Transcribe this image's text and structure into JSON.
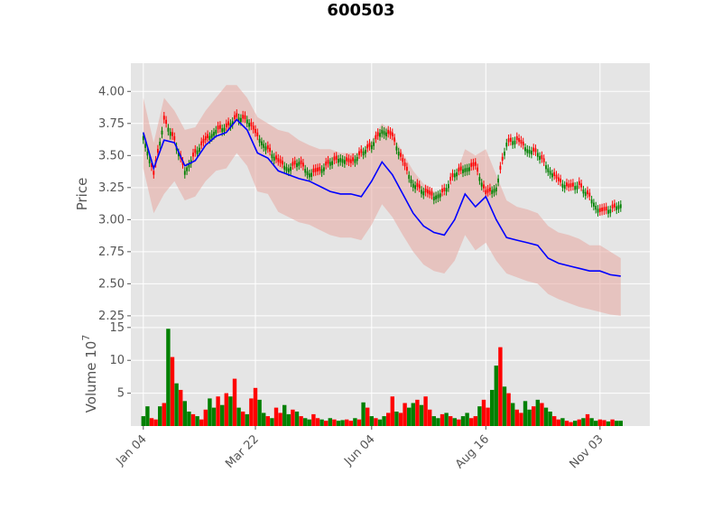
{
  "chart_data": {
    "type": "candlestick",
    "title": "600503",
    "price_panel": {
      "ylabel": "Price",
      "ylim": [
        2.2,
        4.22
      ],
      "yticks": [
        2.25,
        2.5,
        2.75,
        3.0,
        3.25,
        3.5,
        3.75,
        4.0
      ],
      "ytick_labels": [
        "2.25",
        "2.50",
        "2.75",
        "3.00",
        "3.25",
        "3.50",
        "3.75",
        "4.00"
      ],
      "series": [
        {
          "name": "close",
          "color": "#6b8e23",
          "x": [
            0,
            5,
            10,
            15,
            20,
            25,
            30,
            35,
            40,
            45,
            50,
            55,
            60,
            65,
            70,
            75,
            80,
            85,
            90,
            95,
            100,
            105,
            110,
            115,
            120,
            125,
            130,
            135,
            140,
            145,
            150,
            155,
            160,
            165,
            170,
            175,
            180,
            185,
            190,
            195,
            200,
            205,
            210,
            215,
            220,
            225,
            230
          ],
          "y": [
            3.65,
            3.35,
            3.78,
            3.62,
            3.38,
            3.52,
            3.62,
            3.7,
            3.72,
            3.8,
            3.78,
            3.65,
            3.55,
            3.45,
            3.4,
            3.45,
            3.36,
            3.38,
            3.45,
            3.48,
            3.44,
            3.52,
            3.58,
            3.7,
            3.65,
            3.45,
            3.28,
            3.22,
            3.18,
            3.22,
            3.36,
            3.4,
            3.42,
            3.2,
            3.25,
            3.6,
            3.62,
            3.55,
            3.52,
            3.4,
            3.3,
            3.25,
            3.27,
            3.18,
            3.06,
            3.08,
            3.12
          ]
        },
        {
          "name": "moving average",
          "color": "#0000ff",
          "x": [
            0,
            5,
            10,
            15,
            20,
            25,
            30,
            35,
            40,
            45,
            50,
            55,
            60,
            65,
            70,
            75,
            80,
            85,
            90,
            95,
            100,
            105,
            110,
            115,
            120,
            125,
            130,
            135,
            140,
            145,
            150,
            155,
            160,
            165,
            170,
            175,
            180,
            185,
            190,
            195,
            200,
            205,
            210,
            215,
            220,
            225,
            230
          ],
          "y": [
            3.68,
            3.4,
            3.62,
            3.6,
            3.42,
            3.46,
            3.58,
            3.65,
            3.68,
            3.78,
            3.7,
            3.52,
            3.48,
            3.38,
            3.35,
            3.32,
            3.3,
            3.26,
            3.22,
            3.2,
            3.2,
            3.18,
            3.3,
            3.45,
            3.35,
            3.2,
            3.05,
            2.95,
            2.9,
            2.88,
            3.0,
            3.2,
            3.1,
            3.18,
            3.0,
            2.86,
            2.84,
            2.82,
            2.8,
            2.7,
            2.66,
            2.64,
            2.62,
            2.6,
            2.6,
            2.57,
            2.56
          ]
        }
      ],
      "band": {
        "name": "envelope",
        "color": "#e8a8a0",
        "x": [
          0,
          5,
          10,
          15,
          20,
          25,
          30,
          35,
          40,
          45,
          50,
          55,
          60,
          65,
          70,
          75,
          80,
          85,
          90,
          95,
          100,
          105,
          110,
          115,
          120,
          125,
          130,
          135,
          140,
          145,
          150,
          155,
          160,
          165,
          170,
          175,
          180,
          185,
          190,
          195,
          200,
          205,
          210,
          215,
          220,
          225,
          230
        ],
        "upper": [
          3.95,
          3.6,
          3.95,
          3.85,
          3.7,
          3.72,
          3.85,
          3.95,
          4.05,
          4.05,
          3.95,
          3.8,
          3.75,
          3.7,
          3.68,
          3.62,
          3.58,
          3.55,
          3.55,
          3.52,
          3.52,
          3.52,
          3.62,
          3.75,
          3.68,
          3.52,
          3.38,
          3.28,
          3.22,
          3.2,
          3.32,
          3.55,
          3.5,
          3.55,
          3.35,
          3.15,
          3.1,
          3.08,
          3.05,
          2.95,
          2.9,
          2.88,
          2.85,
          2.8,
          2.8,
          2.75,
          2.7
        ],
        "lower": [
          3.4,
          3.05,
          3.2,
          3.3,
          3.15,
          3.18,
          3.3,
          3.38,
          3.4,
          3.52,
          3.42,
          3.22,
          3.2,
          3.06,
          3.02,
          2.98,
          2.96,
          2.92,
          2.88,
          2.86,
          2.86,
          2.84,
          2.96,
          3.12,
          3.02,
          2.88,
          2.75,
          2.65,
          2.6,
          2.58,
          2.68,
          2.88,
          2.76,
          2.82,
          2.68,
          2.58,
          2.55,
          2.52,
          2.5,
          2.42,
          2.38,
          2.35,
          2.32,
          2.3,
          2.28,
          2.26,
          2.25
        ]
      }
    },
    "volume_panel": {
      "ylabel": "Volume  10",
      "ylabel_exponent": "7",
      "ylim": [
        0,
        15.8
      ],
      "yticks": [
        5,
        10,
        15
      ],
      "ytick_labels": [
        "5",
        "10",
        "15"
      ],
      "x": [
        0,
        2,
        4,
        6,
        8,
        10,
        12,
        14,
        16,
        18,
        20,
        22,
        24,
        26,
        28,
        30,
        32,
        34,
        36,
        38,
        40,
        42,
        44,
        46,
        48,
        50,
        52,
        54,
        56,
        58,
        60,
        62,
        64,
        66,
        68,
        70,
        72,
        74,
        76,
        78,
        80,
        82,
        84,
        86,
        88,
        90,
        92,
        94,
        96,
        98,
        100,
        102,
        104,
        106,
        108,
        110,
        112,
        114,
        116,
        118,
        120,
        122,
        124,
        126,
        128,
        130,
        132,
        134,
        136,
        138,
        140,
        142,
        144,
        146,
        148,
        150,
        152,
        154,
        156,
        158,
        160,
        162,
        164,
        166,
        168,
        170,
        172,
        174,
        176,
        178,
        180,
        182,
        184,
        186,
        188,
        190,
        192,
        194,
        196,
        198,
        200,
        202,
        204,
        206,
        208,
        210,
        212,
        214,
        216,
        218,
        220,
        222,
        224,
        226,
        228,
        230
      ],
      "values": [
        1.5,
        3.0,
        1.2,
        1.0,
        3.0,
        3.5,
        14.8,
        10.5,
        6.5,
        5.5,
        3.8,
        2.2,
        1.8,
        1.5,
        1.0,
        2.5,
        4.2,
        2.8,
        4.5,
        3.2,
        5.0,
        4.5,
        7.2,
        2.8,
        2.2,
        1.8,
        4.2,
        5.8,
        4.0,
        2.0,
        1.5,
        1.2,
        2.8,
        2.0,
        3.2,
        1.8,
        2.5,
        2.2,
        1.5,
        1.2,
        1.0,
        1.8,
        1.2,
        1.0,
        0.8,
        1.2,
        1.0,
        0.8,
        0.9,
        1.0,
        0.8,
        1.2,
        1.0,
        3.6,
        2.8,
        1.5,
        1.2,
        1.0,
        1.5,
        2.0,
        4.5,
        2.2,
        2.0,
        3.5,
        2.8,
        3.5,
        4.0,
        3.2,
        4.5,
        2.5,
        1.5,
        1.2,
        1.8,
        2.0,
        1.5,
        1.2,
        1.0,
        1.5,
        2.0,
        1.2,
        1.5,
        3.0,
        4.0,
        2.8,
        5.5,
        9.2,
        12.0,
        6.0,
        5.0,
        3.5,
        2.5,
        2.0,
        3.8,
        2.5,
        3.0,
        4.0,
        3.5,
        2.8,
        2.2,
        1.5,
        1.0,
        1.2,
        0.8,
        0.6,
        0.8,
        1.0,
        1.2,
        1.8,
        1.2,
        0.8,
        1.0,
        0.9,
        0.7,
        1.0,
        0.8,
        0.8
      ],
      "up_flags": [
        1,
        1,
        0,
        0,
        1,
        0,
        1,
        0,
        1,
        0,
        1,
        1,
        0,
        1,
        0,
        0,
        1,
        1,
        0,
        1,
        0,
        1,
        0,
        1,
        0,
        1,
        0,
        0,
        1,
        1,
        0,
        1,
        0,
        0,
        1,
        1,
        0,
        1,
        0,
        1,
        1,
        0,
        0,
        1,
        0,
        1,
        0,
        1,
        1,
        0,
        0,
        1,
        0,
        1,
        0,
        1,
        0,
        1,
        1,
        0,
        0,
        1,
        0,
        0,
        1,
        1,
        0,
        1,
        0,
        0,
        1,
        1,
        0,
        1,
        0,
        1,
        0,
        1,
        1,
        0,
        0,
        1,
        0,
        0,
        1,
        1,
        0,
        1,
        0,
        1,
        0,
        0,
        1,
        1,
        0,
        1,
        0,
        1,
        1,
        0,
        0,
        1,
        0,
        0,
        1,
        0,
        1,
        0,
        1,
        1,
        0,
        0,
        1,
        0,
        1,
        1
      ],
      "up_color": "#008000",
      "down_color": "#ff0000"
    },
    "x_axis": {
      "xlim": [
        -6,
        244
      ],
      "ticks": [
        0,
        54,
        110,
        165,
        220
      ],
      "tick_labels": [
        "Jan 04",
        "Mar 22",
        "Jun 04",
        "Aug 16",
        "Nov 03"
      ]
    },
    "grid": true,
    "style": {
      "background": "#e5e5e5",
      "grid_color": "#ffffff"
    }
  }
}
